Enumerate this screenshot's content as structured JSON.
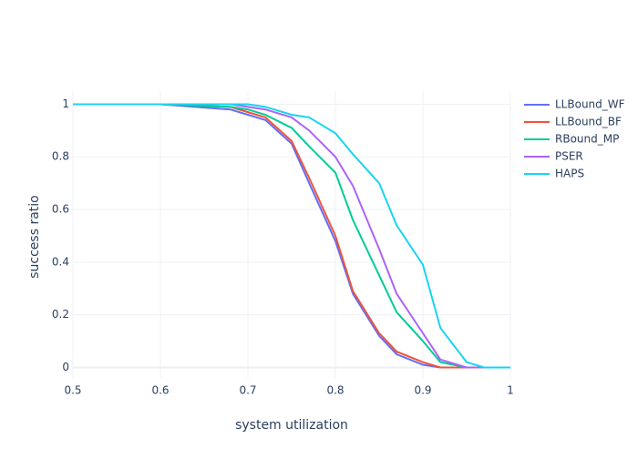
{
  "chart_data": {
    "type": "line",
    "xlabel": "system utilization",
    "ylabel": "success ratio",
    "x": [
      0.5,
      0.6,
      0.68,
      0.7,
      0.72,
      0.75,
      0.77,
      0.8,
      0.82,
      0.85,
      0.87,
      0.9,
      0.92,
      0.95,
      0.97,
      1
    ],
    "series": [
      {
        "name": "LLBound_WF",
        "color": "#636efa",
        "values": [
          1,
          1,
          0.98,
          0.96,
          0.94,
          0.85,
          0.7,
          0.48,
          0.28,
          0.12,
          0.05,
          0.01,
          0,
          0,
          0,
          0
        ]
      },
      {
        "name": "LLBound_BF",
        "color": "#ef553b",
        "values": [
          1,
          1,
          0.99,
          0.97,
          0.95,
          0.86,
          0.72,
          0.5,
          0.29,
          0.13,
          0.06,
          0.02,
          0,
          0,
          0,
          0
        ]
      },
      {
        "name": "RBound_MP",
        "color": "#00cc96",
        "values": [
          1,
          1,
          0.99,
          0.98,
          0.96,
          0.91,
          0.84,
          0.74,
          0.56,
          0.35,
          0.21,
          0.1,
          0.02,
          0,
          0,
          0
        ]
      },
      {
        "name": "PSER",
        "color": "#ab63fa",
        "values": [
          1,
          1,
          1,
          0.99,
          0.98,
          0.95,
          0.9,
          0.8,
          0.69,
          0.45,
          0.28,
          0.13,
          0.03,
          0,
          0,
          0
        ]
      },
      {
        "name": "HAPS",
        "color": "#19d3f3",
        "values": [
          1,
          1,
          1,
          1,
          0.99,
          0.96,
          0.95,
          0.89,
          0.81,
          0.7,
          0.54,
          0.39,
          0.15,
          0.02,
          0,
          0
        ]
      }
    ],
    "xlim": [
      0.5,
      1
    ],
    "xticks": [
      0.5,
      0.6,
      0.7,
      0.8,
      0.9,
      1
    ],
    "ylim": [
      -0.04,
      1.05
    ],
    "yticks": [
      0,
      0.2,
      0.4,
      0.6,
      0.8,
      1
    ],
    "grid": true,
    "legend": "right"
  }
}
